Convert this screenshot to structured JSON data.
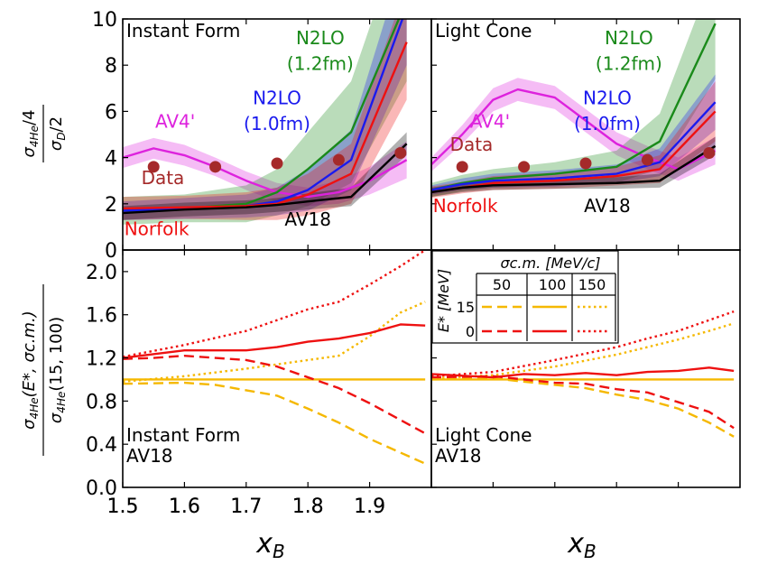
{
  "figure": {
    "x_axis_label": "x",
    "x_axis_label_sub": "B",
    "top_y_label": {
      "num_main": "σ",
      "num_sub": "4He",
      "num_tail": "/4",
      "den_main": "σ",
      "den_sub": "D",
      "den_tail": "/2"
    },
    "bottom_y_label": {
      "num_main": "σ",
      "num_sub": "4He",
      "num_tail": "(E*, σc.m.)",
      "den_main": "σ",
      "den_sub": "4He",
      "den_tail": "(15, 100)"
    }
  },
  "chart_data": [
    {
      "panel": "top-left",
      "type": "line",
      "title": "Instant Form",
      "xlim": [
        1.5,
        2.0
      ],
      "ylim": [
        0,
        10
      ],
      "xticks": [
        "1.5",
        "1.6",
        "1.7",
        "1.8",
        "1.9"
      ],
      "yticks": [
        "0",
        "2",
        "4",
        "6",
        "8",
        "10"
      ],
      "series": [
        {
          "name": "AV4'",
          "color": "#dd22dd",
          "x": [
            1.5,
            1.55,
            1.6,
            1.65,
            1.7,
            1.75,
            1.8,
            1.85,
            1.9,
            1.96
          ],
          "y": [
            4.0,
            4.4,
            4.1,
            3.6,
            3.0,
            2.5,
            2.3,
            2.5,
            3.0,
            3.9
          ],
          "band": [
            0.45,
            0.45,
            0.45,
            0.4,
            0.4,
            0.4,
            0.4,
            0.5,
            0.6,
            0.8
          ]
        },
        {
          "name": "Data",
          "color": "#a52a2a",
          "kind": "scatter",
          "x": [
            1.55,
            1.65,
            1.75,
            1.85,
            1.95
          ],
          "y": [
            3.6,
            3.6,
            3.75,
            3.9,
            4.2
          ]
        },
        {
          "name": "N2LO (1.2fm)",
          "color": "#1a8a1a",
          "x": [
            1.5,
            1.6,
            1.7,
            1.75,
            1.8,
            1.87,
            1.96
          ],
          "y": [
            1.7,
            1.8,
            2.0,
            2.5,
            3.5,
            5.1,
            10.8
          ],
          "band": [
            0.6,
            0.6,
            0.8,
            1.0,
            1.6,
            2.2,
            3.5
          ]
        },
        {
          "name": "N2LO (1.0fm)",
          "color": "#1a1aee",
          "x": [
            1.5,
            1.6,
            1.7,
            1.75,
            1.8,
            1.87,
            1.96
          ],
          "y": [
            1.7,
            1.8,
            1.9,
            2.1,
            2.6,
            3.9,
            10.5
          ],
          "band": [
            0.4,
            0.45,
            0.5,
            0.6,
            0.9,
            1.3,
            2.5
          ]
        },
        {
          "name": "Norfolk",
          "color": "#ee1111",
          "x": [
            1.5,
            1.6,
            1.7,
            1.75,
            1.8,
            1.87,
            1.96
          ],
          "y": [
            1.8,
            1.85,
            1.9,
            2.0,
            2.4,
            3.3,
            9.0
          ],
          "band": [
            0.5,
            0.5,
            0.6,
            0.7,
            0.9,
            1.3,
            2.5
          ]
        },
        {
          "name": "AV18",
          "color": "#000000",
          "x": [
            1.5,
            1.6,
            1.7,
            1.75,
            1.8,
            1.87,
            1.96
          ],
          "y": [
            1.6,
            1.75,
            1.85,
            1.95,
            2.1,
            2.3,
            4.6
          ],
          "band": [
            0.3,
            0.3,
            0.3,
            0.3,
            0.35,
            0.4,
            0.5
          ]
        }
      ],
      "labels": [
        {
          "text": "N2LO",
          "color": "#1a8a1a",
          "x": 1.82,
          "y": 8.9
        },
        {
          "text": "(1.2fm)",
          "color": "#1a8a1a",
          "x": 1.82,
          "y": 7.8
        },
        {
          "text": "N2LO",
          "color": "#1a1aee",
          "x": 1.75,
          "y": 6.3
        },
        {
          "text": "(1.0fm)",
          "color": "#1a1aee",
          "x": 1.75,
          "y": 5.2
        },
        {
          "text": "AV4'",
          "color": "#dd22dd",
          "x": 1.585,
          "y": 5.3
        },
        {
          "text": "Data",
          "color": "#a52a2a",
          "x": 1.565,
          "y": 2.85
        },
        {
          "text": "Norfolk",
          "color": "#ee1111",
          "x": 1.555,
          "y": 0.65
        },
        {
          "text": "AV18",
          "color": "#000000",
          "x": 1.8,
          "y": 1.05
        }
      ]
    },
    {
      "panel": "top-right",
      "type": "line",
      "title": "Light Cone",
      "xlim": [
        1.5,
        2.0
      ],
      "ylim": [
        0,
        10
      ],
      "series": [
        {
          "name": "AV4'",
          "color": "#dd22dd",
          "x": [
            1.5,
            1.55,
            1.6,
            1.64,
            1.7,
            1.75,
            1.8,
            1.85,
            1.9,
            1.96
          ],
          "y": [
            3.7,
            5.0,
            6.5,
            6.95,
            6.6,
            5.6,
            4.6,
            4.0,
            3.5,
            4.3
          ],
          "band": [
            0.3,
            0.4,
            0.5,
            0.5,
            0.5,
            0.5,
            0.5,
            0.5,
            0.5,
            0.6
          ]
        },
        {
          "name": "Data",
          "color": "#a52a2a",
          "kind": "scatter",
          "x": [
            1.55,
            1.65,
            1.75,
            1.85,
            1.95
          ],
          "y": [
            3.6,
            3.6,
            3.75,
            3.9,
            4.2
          ]
        },
        {
          "name": "N2LO (1.2fm)",
          "color": "#1a8a1a",
          "x": [
            1.5,
            1.55,
            1.6,
            1.7,
            1.8,
            1.87,
            1.96
          ],
          "y": [
            2.6,
            2.9,
            3.1,
            3.3,
            3.6,
            4.7,
            9.8
          ],
          "band": [
            0.3,
            0.35,
            0.4,
            0.5,
            0.7,
            1.2,
            2.4
          ]
        },
        {
          "name": "N2LO (1.0fm)",
          "color": "#1a1aee",
          "x": [
            1.5,
            1.55,
            1.6,
            1.7,
            1.8,
            1.87,
            1.96
          ],
          "y": [
            2.6,
            2.85,
            3.0,
            3.1,
            3.3,
            3.8,
            6.4
          ],
          "band": [
            0.2,
            0.25,
            0.3,
            0.35,
            0.4,
            0.6,
            1.2
          ]
        },
        {
          "name": "Norfolk",
          "color": "#ee1111",
          "x": [
            1.5,
            1.55,
            1.6,
            1.7,
            1.8,
            1.87,
            1.96
          ],
          "y": [
            2.5,
            2.7,
            2.9,
            3.0,
            3.2,
            3.5,
            6.0
          ],
          "band": [
            0.25,
            0.25,
            0.3,
            0.35,
            0.4,
            0.6,
            1.3
          ]
        },
        {
          "name": "AV18",
          "color": "#000000",
          "x": [
            1.5,
            1.55,
            1.6,
            1.7,
            1.8,
            1.87,
            1.96
          ],
          "y": [
            2.5,
            2.7,
            2.8,
            2.85,
            2.9,
            3.0,
            4.5
          ],
          "band": [
            0.2,
            0.2,
            0.2,
            0.2,
            0.25,
            0.3,
            0.4
          ]
        }
      ],
      "labels": [
        {
          "text": "N2LO",
          "color": "#1a8a1a",
          "x": 1.82,
          "y": 8.9
        },
        {
          "text": "(1.2fm)",
          "color": "#1a8a1a",
          "x": 1.82,
          "y": 7.8
        },
        {
          "text": "N2LO",
          "color": "#1a1aee",
          "x": 1.785,
          "y": 6.3
        },
        {
          "text": "(1.0fm)",
          "color": "#1a1aee",
          "x": 1.785,
          "y": 5.2
        },
        {
          "text": "AV4'",
          "color": "#dd22dd",
          "x": 1.595,
          "y": 5.3
        },
        {
          "text": "Data",
          "color": "#a52a2a",
          "x": 1.565,
          "y": 4.3
        },
        {
          "text": "Norfolk",
          "color": "#ee1111",
          "x": 1.555,
          "y": 1.65
        },
        {
          "text": "AV18",
          "color": "#000000",
          "x": 1.785,
          "y": 1.65
        }
      ]
    },
    {
      "panel": "bottom-left",
      "type": "line",
      "title": "Instant Form",
      "subtitle": "AV18",
      "xlim": [
        1.5,
        2.0
      ],
      "ylim": [
        0.0,
        2.2
      ],
      "xticks": [
        "1.5",
        "1.6",
        "1.7",
        "1.8",
        "1.9"
      ],
      "yticks": [
        "0.0",
        "0.4",
        "0.8",
        "1.2",
        "1.6",
        "2.0"
      ],
      "series": [
        {
          "name": "E*=15, 50",
          "color": "#f5b800",
          "style": "dashed",
          "x": [
            1.5,
            1.6,
            1.65,
            1.7,
            1.75,
            1.8,
            1.85,
            1.9,
            1.99
          ],
          "y": [
            0.96,
            0.97,
            0.95,
            0.9,
            0.85,
            0.73,
            0.6,
            0.45,
            0.22
          ]
        },
        {
          "name": "E*=15, 100",
          "color": "#f5b800",
          "style": "solid",
          "x": [
            1.5,
            1.99
          ],
          "y": [
            1.0,
            1.0
          ]
        },
        {
          "name": "E*=15, 150",
          "color": "#f5b800",
          "style": "dotted",
          "x": [
            1.5,
            1.6,
            1.7,
            1.8,
            1.85,
            1.9,
            1.95,
            1.99
          ],
          "y": [
            0.98,
            1.03,
            1.1,
            1.18,
            1.22,
            1.4,
            1.62,
            1.72
          ]
        },
        {
          "name": "E*=0, 50",
          "color": "#ee1111",
          "style": "dashed",
          "x": [
            1.5,
            1.55,
            1.6,
            1.65,
            1.7,
            1.75,
            1.8,
            1.85,
            1.9,
            1.99
          ],
          "y": [
            1.19,
            1.2,
            1.22,
            1.2,
            1.18,
            1.12,
            1.02,
            0.92,
            0.78,
            0.5
          ]
        },
        {
          "name": "E*=0, 100",
          "color": "#ee1111",
          "style": "solid",
          "x": [
            1.5,
            1.6,
            1.7,
            1.75,
            1.8,
            1.85,
            1.9,
            1.95,
            1.99
          ],
          "y": [
            1.2,
            1.27,
            1.27,
            1.3,
            1.35,
            1.38,
            1.43,
            1.51,
            1.5
          ]
        },
        {
          "name": "E*=0, 150",
          "color": "#ee1111",
          "style": "dotted",
          "x": [
            1.5,
            1.6,
            1.7,
            1.75,
            1.8,
            1.85,
            1.9,
            1.95,
            1.99
          ],
          "y": [
            1.21,
            1.32,
            1.45,
            1.55,
            1.65,
            1.72,
            1.88,
            2.05,
            2.2
          ]
        }
      ]
    },
    {
      "panel": "bottom-right",
      "type": "line",
      "title": "Light Cone",
      "subtitle": "AV18",
      "xlim": [
        1.5,
        2.0
      ],
      "ylim": [
        0.0,
        2.2
      ],
      "series": [
        {
          "name": "E*=15, 50",
          "color": "#f5b800",
          "style": "dashed",
          "x": [
            1.5,
            1.6,
            1.7,
            1.75,
            1.8,
            1.85,
            1.9,
            1.95,
            1.99
          ],
          "y": [
            1.0,
            1.01,
            0.95,
            0.92,
            0.86,
            0.81,
            0.73,
            0.6,
            0.47
          ]
        },
        {
          "name": "E*=15, 100",
          "color": "#f5b800",
          "style": "solid",
          "x": [
            1.5,
            1.99
          ],
          "y": [
            1.0,
            1.0
          ]
        },
        {
          "name": "E*=15, 150",
          "color": "#f5b800",
          "style": "dotted",
          "x": [
            1.5,
            1.6,
            1.7,
            1.8,
            1.85,
            1.9,
            1.95,
            1.99
          ],
          "y": [
            1.01,
            1.04,
            1.12,
            1.23,
            1.3,
            1.37,
            1.45,
            1.52
          ]
        },
        {
          "name": "E*=0, 50",
          "color": "#ee1111",
          "style": "dashed",
          "x": [
            1.5,
            1.6,
            1.7,
            1.75,
            1.8,
            1.85,
            1.9,
            1.95,
            1.99
          ],
          "y": [
            1.02,
            1.03,
            0.97,
            0.96,
            0.91,
            0.88,
            0.79,
            0.7,
            0.55
          ]
        },
        {
          "name": "E*=0, 100",
          "color": "#ee1111",
          "style": "solid",
          "x": [
            1.5,
            1.6,
            1.65,
            1.7,
            1.75,
            1.8,
            1.85,
            1.9,
            1.95,
            1.99
          ],
          "y": [
            1.05,
            1.02,
            1.05,
            1.04,
            1.06,
            1.04,
            1.07,
            1.08,
            1.11,
            1.08
          ]
        },
        {
          "name": "E*=0, 150",
          "color": "#ee1111",
          "style": "dotted",
          "x": [
            1.5,
            1.6,
            1.7,
            1.8,
            1.85,
            1.9,
            1.95,
            1.99
          ],
          "y": [
            1.03,
            1.07,
            1.18,
            1.3,
            1.38,
            1.45,
            1.55,
            1.63
          ]
        }
      ],
      "legend": {
        "title": "σc.m. [MeV/c]",
        "col_labels": [
          "50",
          "100",
          "150"
        ],
        "row_title": "E* [MeV]",
        "row_labels": [
          "15",
          "0"
        ]
      }
    }
  ]
}
